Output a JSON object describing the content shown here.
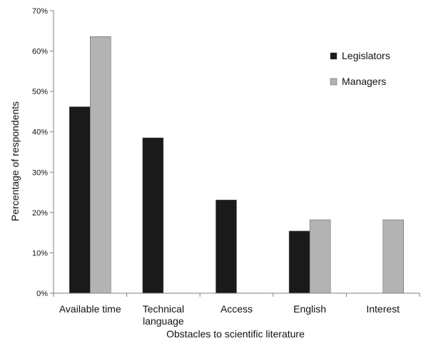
{
  "chart_data": {
    "type": "bar",
    "title": "",
    "xlabel": "Obstacles to scientific literature",
    "ylabel": "Percentage of respondents",
    "categories": [
      "Available time",
      "Technical|language",
      "Access",
      "English",
      "Interest"
    ],
    "series": [
      {
        "name": "Legislators",
        "color": "#1a1a1a",
        "values": [
          46.2,
          38.5,
          23.1,
          15.4,
          0
        ]
      },
      {
        "name": "Managers",
        "color": "#b3b3b3",
        "values": [
          63.6,
          0,
          0,
          18.2,
          18.2
        ]
      }
    ],
    "ylim": [
      0,
      70
    ],
    "yticks": [
      0,
      10,
      20,
      30,
      40,
      50,
      60,
      70
    ],
    "ytick_labels": [
      "0%",
      "10%",
      "20%",
      "30%",
      "40%",
      "50%",
      "60%",
      "70%"
    ],
    "grid": false,
    "legend_position": "top-right"
  }
}
